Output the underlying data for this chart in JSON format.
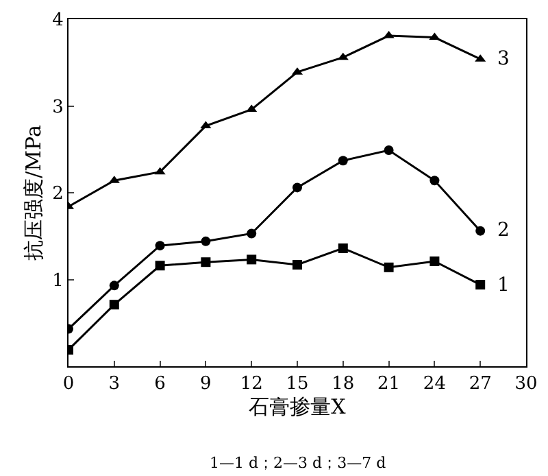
{
  "chart_data": {
    "type": "line",
    "xlabel": "石膏掺量X",
    "ylabel": "抗压强度/MPa",
    "x": [
      0,
      3,
      6,
      9,
      12,
      15,
      18,
      21,
      24,
      27
    ],
    "series": [
      {
        "name": "1",
        "color": "#000000",
        "marker": "square",
        "values": [
          0.19,
          0.71,
          1.16,
          1.2,
          1.23,
          1.17,
          1.36,
          1.14,
          1.21,
          0.94
        ]
      },
      {
        "name": "2",
        "color": "#000000",
        "marker": "circle",
        "values": [
          0.43,
          0.93,
          1.39,
          1.44,
          1.53,
          2.06,
          2.37,
          2.49,
          2.14,
          1.56
        ]
      },
      {
        "name": "3",
        "color": "#000000",
        "marker": "triangle",
        "values": [
          1.84,
          2.14,
          2.24,
          2.77,
          2.96,
          3.39,
          3.56,
          3.81,
          3.79,
          3.54
        ]
      }
    ],
    "xlim": [
      0,
      30
    ],
    "xticks": [
      0,
      3,
      6,
      9,
      12,
      15,
      18,
      21,
      24,
      27,
      30
    ],
    "ylim": [
      0,
      4
    ],
    "yticks": [
      {
        "value": 0,
        "label": null
      },
      1,
      2,
      3,
      4
    ],
    "legend": false,
    "line_style": "solid",
    "annotations": [
      "1—1 d；2—3 d；3—7 d"
    ]
  }
}
